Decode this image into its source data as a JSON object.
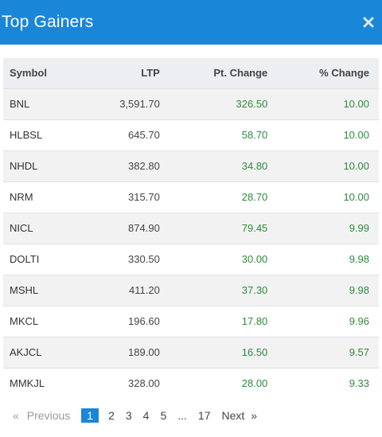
{
  "header": {
    "title": "Top Gainers",
    "close_icon": "close-icon"
  },
  "table": {
    "columns": [
      "Symbol",
      "LTP",
      "Pt. Change",
      "% Change"
    ],
    "rows": [
      {
        "symbol": "BNL",
        "ltp": "3,591.70",
        "pt": "326.50",
        "pct": "10.00"
      },
      {
        "symbol": "HLBSL",
        "ltp": "645.70",
        "pt": "58.70",
        "pct": "10.00"
      },
      {
        "symbol": "NHDL",
        "ltp": "382.80",
        "pt": "34.80",
        "pct": "10.00"
      },
      {
        "symbol": "NRM",
        "ltp": "315.70",
        "pt": "28.70",
        "pct": "10.00"
      },
      {
        "symbol": "NICL",
        "ltp": "874.90",
        "pt": "79.45",
        "pct": "9.99"
      },
      {
        "symbol": "DOLTI",
        "ltp": "330.50",
        "pt": "30.00",
        "pct": "9.98"
      },
      {
        "symbol": "MSHL",
        "ltp": "411.20",
        "pt": "37.30",
        "pct": "9.98"
      },
      {
        "symbol": "MKCL",
        "ltp": "196.60",
        "pt": "17.80",
        "pct": "9.96"
      },
      {
        "symbol": "AKJCL",
        "ltp": "189.00",
        "pt": "16.50",
        "pct": "9.57"
      },
      {
        "symbol": "MMKJL",
        "ltp": "328.00",
        "pt": "28.00",
        "pct": "9.33"
      }
    ]
  },
  "pagination": {
    "first_arrow": "«",
    "previous": "Previous",
    "pages": [
      "1",
      "2",
      "3",
      "4",
      "5",
      "...",
      "17"
    ],
    "next": "Next",
    "last_arrow": "»",
    "active_page": "1"
  },
  "colors": {
    "header_bg": "#1a86d8",
    "positive": "#2e8b3a"
  }
}
